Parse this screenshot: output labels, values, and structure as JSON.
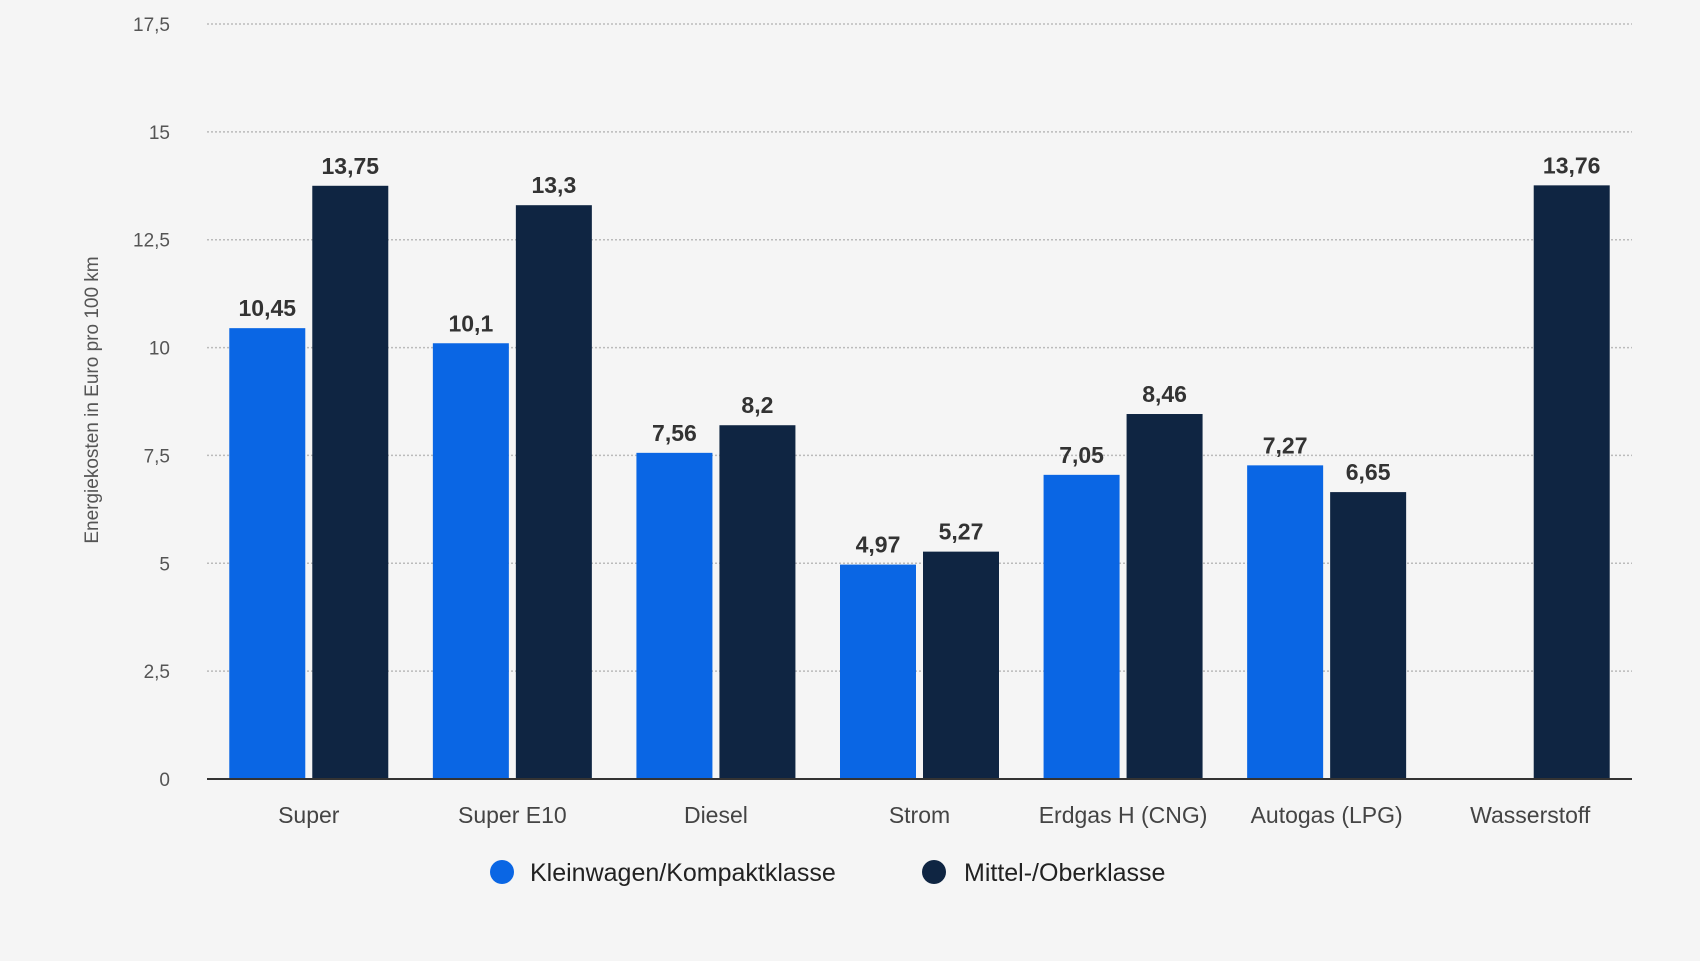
{
  "chart_data": {
    "type": "bar",
    "title": "",
    "xlabel": "",
    "ylabel": "Energiekosten in Euro pro 100 km",
    "ylim": [
      0,
      17.5
    ],
    "yticks": [
      "0",
      "2,5",
      "5",
      "7,5",
      "10",
      "12,5",
      "15",
      "17,5"
    ],
    "grid": true,
    "legend_position": "bottom",
    "categories": [
      "Super",
      "Super E10",
      "Diesel",
      "Strom",
      "Erdgas H (CNG)",
      "Autogas (LPG)",
      "Wasserstoff"
    ],
    "series": [
      {
        "name": "Kleinwagen/Kompaktklasse",
        "color": "#0a66e4",
        "values": [
          10.45,
          10.1,
          7.56,
          4.97,
          7.05,
          7.27,
          null
        ],
        "labels": [
          "10,45",
          "10,1",
          "7,56",
          "4,97",
          "7,05",
          "7,27",
          null
        ]
      },
      {
        "name": "Mittel-/Oberklasse",
        "color": "#0f2542",
        "values": [
          13.75,
          13.3,
          8.2,
          5.27,
          8.46,
          6.65,
          13.76
        ],
        "labels": [
          "13,75",
          "13,3",
          "8,2",
          "5,27",
          "8,46",
          "6,65",
          "13,76"
        ]
      }
    ]
  }
}
